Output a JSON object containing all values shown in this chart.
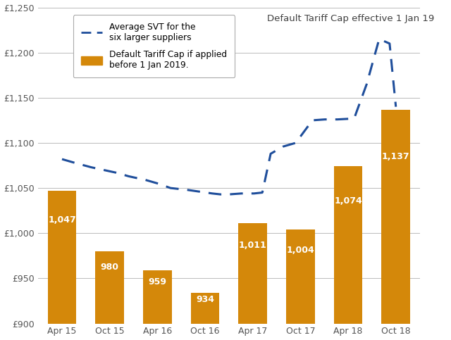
{
  "bar_categories": [
    "Apr 15",
    "Oct 15",
    "Apr 16",
    "Oct 16",
    "Apr 17",
    "Oct 17",
    "Apr 18",
    "Oct 18"
  ],
  "bar_values": [
    1047,
    980,
    959,
    934,
    1011,
    1004,
    1074,
    1137
  ],
  "bar_color": "#D4880A",
  "bar_bottom": 900,
  "line_x": [
    0,
    0.3,
    0.7,
    1.0,
    1.3,
    1.6,
    2.0,
    2.3,
    2.6,
    3.0,
    3.3,
    3.6,
    3.8,
    4.0,
    4.3,
    4.6,
    4.8,
    5.0,
    5.3,
    5.6,
    6.0,
    6.3,
    6.6,
    7.0,
    7.3,
    7.6,
    7.85,
    8.0
  ],
  "line_y": [
    1082,
    1078,
    1073,
    1070,
    1067,
    1063,
    1059,
    1055,
    1050,
    1048,
    1046,
    1044,
    1043,
    1043,
    1044,
    1044,
    1045,
    1088,
    1096,
    1100,
    1125,
    1126,
    1126,
    1127,
    1165,
    1215,
    1210,
    1140
  ],
  "line_color": "#1F4E9B",
  "line_width": 2.2,
  "ylim": [
    900,
    1250
  ],
  "yticks": [
    900,
    950,
    1000,
    1050,
    1100,
    1150,
    1200,
    1250
  ],
  "ytick_labels": [
    "£900",
    "£950",
    "£1,000",
    "£1,050",
    "£1,100",
    "£1,150",
    "£1,200",
    "£1,250"
  ],
  "annotation_text": "Default Tariff Cap effective 1 Jan 19",
  "annotation_color": "#404040",
  "annotation_fontsize": 9.5,
  "legend1_label_line1": "Average SVT for the",
  "legend1_label_line2": "six larger suppliers",
  "legend2_label_line1": "Default Tariff Cap if applied",
  "legend2_label_line2": "before 1 Jan 2019.",
  "background_color": "#ffffff",
  "grid_color": "#bbbbbb",
  "bar_label_color": "#ffffff",
  "bar_label_fontsize": 9,
  "axis_label_color": "#555555",
  "tick_label_fontsize": 9,
  "bar_width": 0.6
}
